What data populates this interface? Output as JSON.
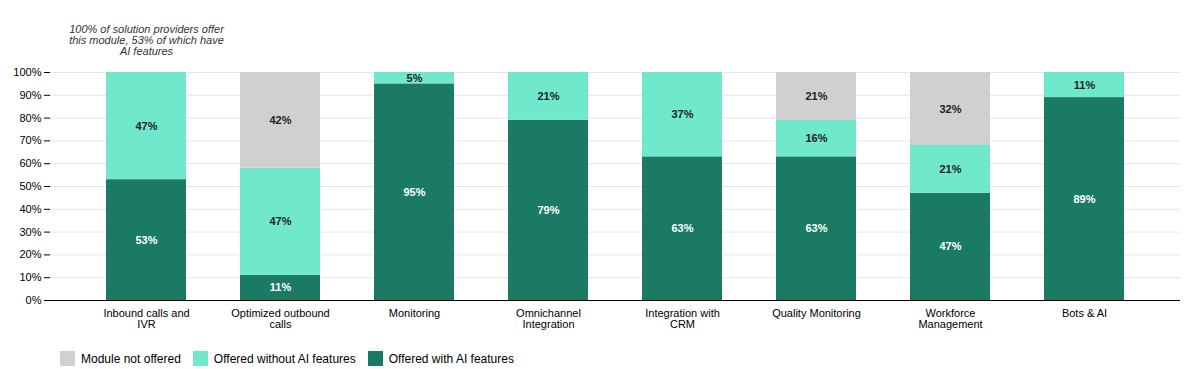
{
  "chart_data": {
    "type": "bar",
    "stacked": true,
    "categories": [
      "Inbound calls and\nIVR",
      "Optimized outbound\ncalls",
      "Monitoring",
      "Omnichannel\nIntegration",
      "Integration with\nCRM",
      "Quality Monitoring",
      "Workforce\nManagement",
      "Bots & AI"
    ],
    "series": [
      {
        "name": "Offered with AI features",
        "color": "#1a7a63",
        "values": [
          53,
          11,
          95,
          79,
          63,
          63,
          47,
          89
        ],
        "value_labels": [
          "53%",
          "11%",
          "95%",
          "79%",
          "63%",
          "63%",
          "47%",
          "89%"
        ]
      },
      {
        "name": "Offered without AI features",
        "color": "#6fe8cc",
        "values": [
          47,
          47,
          5,
          21,
          37,
          16,
          21,
          11
        ],
        "value_labels": [
          "47%",
          "47%",
          "5%",
          "21%",
          "37%",
          "16%",
          "21%",
          "11%"
        ]
      },
      {
        "name": "Module not offered",
        "color": "#d0d0d0",
        "values": [
          0,
          42,
          0,
          0,
          0,
          21,
          32,
          0
        ],
        "value_labels": [
          null,
          "42%",
          null,
          null,
          null,
          "21%",
          "32%",
          null
        ]
      }
    ],
    "annotations": [
      "100% of solution providers offer\nthis module, 53% of which have\nAI features"
    ],
    "ylim": [
      0,
      100
    ],
    "yticks": [
      {
        "value": 0,
        "label": "0%"
      },
      {
        "value": 10,
        "label": "10%"
      },
      {
        "value": 20,
        "label": "20%"
      },
      {
        "value": 30,
        "label": "30%"
      },
      {
        "value": 40,
        "label": "40%"
      },
      {
        "value": 50,
        "label": "50%"
      },
      {
        "value": 60,
        "label": "60%"
      },
      {
        "value": 70,
        "label": "70%"
      },
      {
        "value": 80,
        "label": "80%"
      },
      {
        "value": 90,
        "label": "90%"
      },
      {
        "value": 100,
        "label": "100%"
      }
    ],
    "grid": true,
    "data_labels": true
  }
}
